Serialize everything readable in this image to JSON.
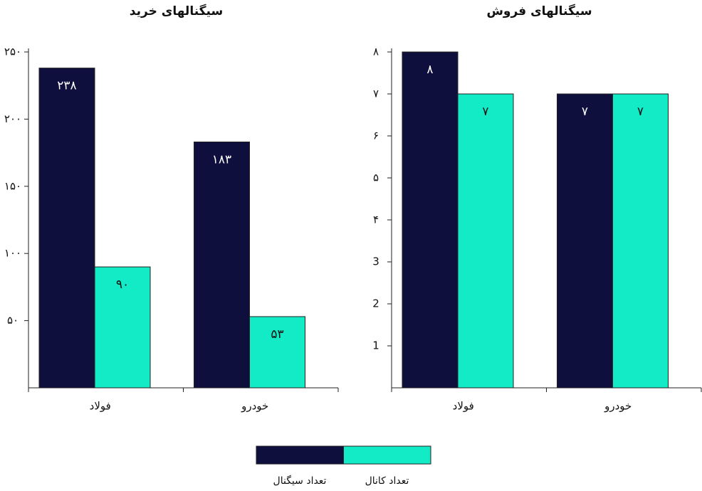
{
  "chart_data": [
    {
      "type": "bar",
      "title": "سیگنالهای خرید",
      "categories": [
        "فولاد",
        "خودرو"
      ],
      "series": [
        {
          "name": "تعداد سیگنال",
          "color": "#0f0f3d",
          "values": [
            238,
            183
          ],
          "value_labels": [
            "۲۳۸",
            "۱۸۳"
          ]
        },
        {
          "name": "تعداد کانال",
          "color": "#12ebc6",
          "values": [
            90,
            53
          ],
          "value_labels": [
            "۹۰",
            "۵۳"
          ]
        }
      ],
      "ylim": [
        0,
        250
      ],
      "yticks": [
        {
          "value": 50,
          "label": "۵۰"
        },
        {
          "value": 100,
          "label": "۱۰۰"
        },
        {
          "value": 150,
          "label": "۱۵۰"
        },
        {
          "value": 200,
          "label": "۲۰۰"
        },
        {
          "value": 250,
          "label": "۲۵۰"
        }
      ]
    },
    {
      "type": "bar",
      "title": "سیگنالهای فروش",
      "categories": [
        "فولاد",
        "خودرو"
      ],
      "series": [
        {
          "name": "تعداد سیگنال",
          "color": "#0f0f3d",
          "values": [
            8,
            7
          ],
          "value_labels": [
            "۸",
            "۷"
          ]
        },
        {
          "name": "تعداد کانال",
          "color": "#12ebc6",
          "values": [
            7,
            7
          ],
          "value_labels": [
            "۷",
            "۷"
          ]
        }
      ],
      "ylim": [
        0,
        8
      ],
      "yticks": [
        1,
        2,
        3,
        {
          "value": 4,
          "label": "۴"
        },
        {
          "value": 5,
          "label": "۵"
        },
        {
          "value": 6,
          "label": "۶"
        },
        {
          "value": 7,
          "label": "۷"
        },
        {
          "value": 8,
          "label": "۸"
        }
      ]
    }
  ]
}
